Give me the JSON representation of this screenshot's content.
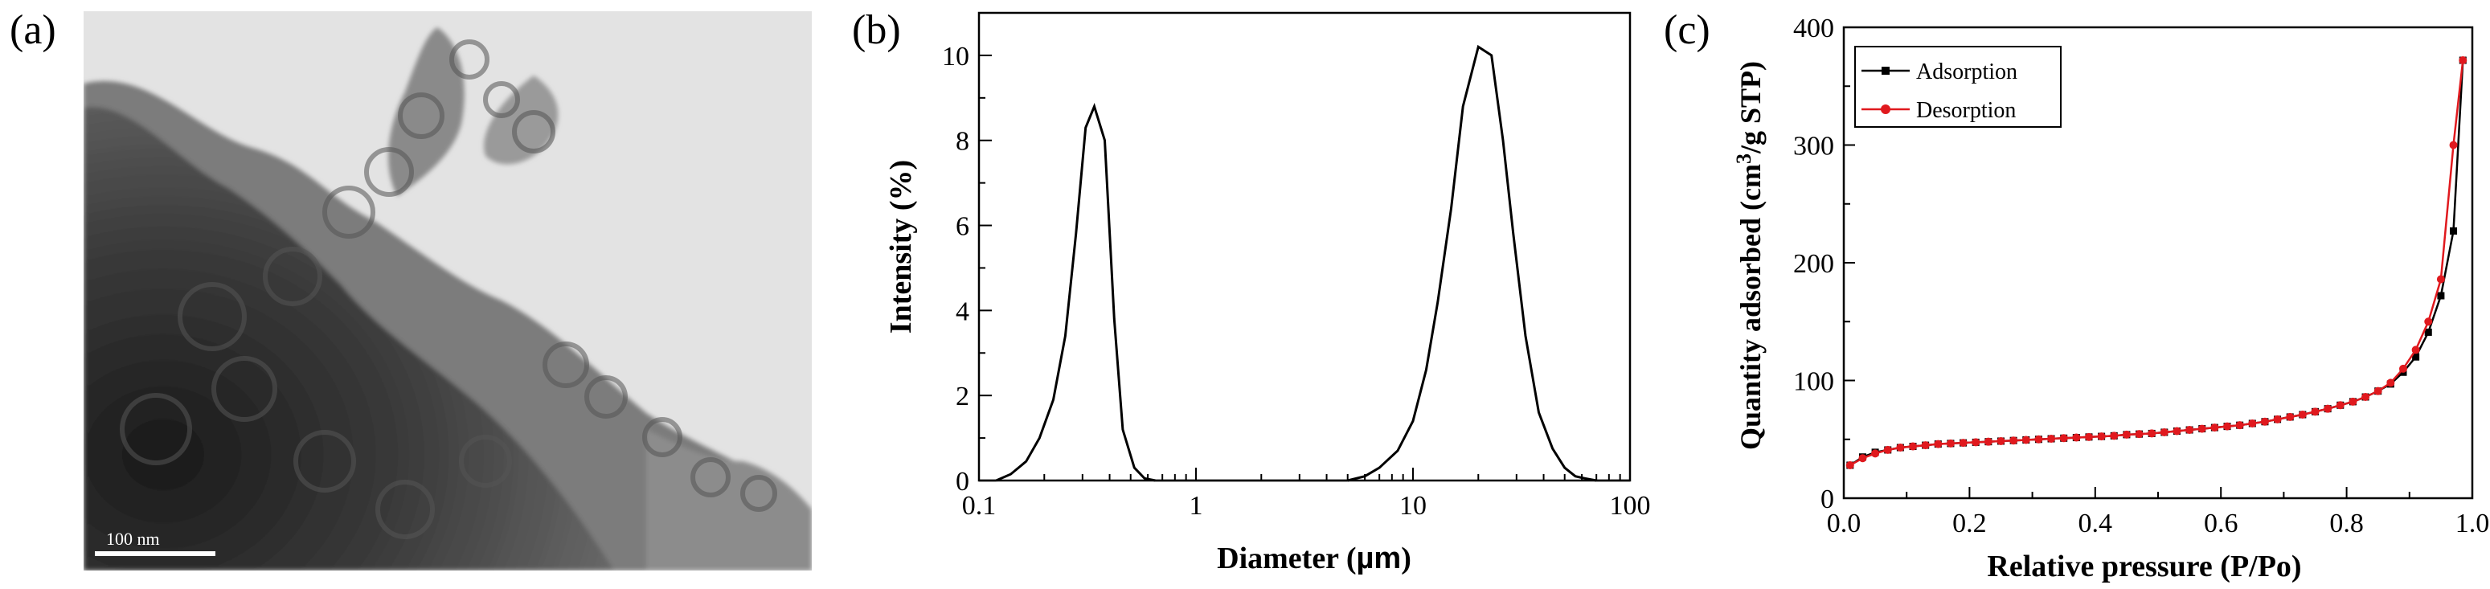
{
  "panels": {
    "a": {
      "label": "(a)",
      "scale_bar": "100 nm"
    },
    "b": {
      "label": "(b)"
    },
    "c": {
      "label": "(c)"
    }
  },
  "colors": {
    "adsorption": "#000000",
    "desorption": "#e0191e"
  },
  "chart_data": [
    {
      "panel": "b",
      "type": "line",
      "xlabel_main": "Diameter (",
      "xlabel_unit": "µm",
      "xlabel_close": ")",
      "ylabel": "Intensity (%)",
      "xscale": "log",
      "xlim": [
        0.1,
        100
      ],
      "ylim": [
        0,
        11
      ],
      "xticks": [
        {
          "v": 0.1,
          "label": "0.1"
        },
        {
          "v": 1,
          "label": "1"
        },
        {
          "v": 10,
          "label": "10"
        },
        {
          "v": 100,
          "label": "100"
        }
      ],
      "yticks": [
        {
          "v": 0,
          "label": "0"
        },
        {
          "v": 2,
          "label": "2"
        },
        {
          "v": 4,
          "label": "4"
        },
        {
          "v": 6,
          "label": "6"
        },
        {
          "v": 8,
          "label": "8"
        },
        {
          "v": 10,
          "label": "10"
        }
      ],
      "series": [
        {
          "x": [
            0.12,
            0.14,
            0.165,
            0.19,
            0.22,
            0.25,
            0.28,
            0.31,
            0.34,
            0.38,
            0.42,
            0.46,
            0.52,
            0.58,
            0.65
          ],
          "y": [
            0,
            0.15,
            0.45,
            1.0,
            1.9,
            3.4,
            5.8,
            8.3,
            8.8,
            8.0,
            3.8,
            1.2,
            0.3,
            0.05,
            0
          ]
        },
        {
          "x": [
            5.0,
            6.0,
            7.0,
            8.5,
            10,
            11.5,
            13,
            15,
            17,
            20,
            23,
            26,
            29,
            33,
            38,
            44,
            50,
            56,
            62,
            70
          ],
          "y": [
            0,
            0.1,
            0.3,
            0.7,
            1.4,
            2.6,
            4.2,
            6.4,
            8.8,
            10.2,
            10.0,
            8.0,
            5.8,
            3.4,
            1.6,
            0.75,
            0.3,
            0.1,
            0.05,
            0
          ]
        }
      ]
    },
    {
      "panel": "c",
      "type": "line",
      "xlabel": "Relative pressure (P/Po)",
      "ylabel_main": "Quantity adsorbed (cm",
      "ylabel_sup": "3",
      "ylabel_rest": "/g STP)",
      "xlim": [
        0,
        1.0
      ],
      "ylim": [
        0,
        400
      ],
      "xticks": [
        {
          "v": 0.0,
          "label": "0.0"
        },
        {
          "v": 0.2,
          "label": "0.2"
        },
        {
          "v": 0.4,
          "label": "0.4"
        },
        {
          "v": 0.6,
          "label": "0.6"
        },
        {
          "v": 0.8,
          "label": "0.8"
        },
        {
          "v": 1.0,
          "label": "1.0"
        }
      ],
      "yticks": [
        {
          "v": 0,
          "label": "0"
        },
        {
          "v": 100,
          "label": "100"
        },
        {
          "v": 200,
          "label": "200"
        },
        {
          "v": 300,
          "label": "300"
        },
        {
          "v": 400,
          "label": "400"
        }
      ],
      "legend_position": "top-left",
      "series": [
        {
          "name": "Adsorption",
          "marker": "square",
          "color_key": "adsorption",
          "x": [
            0.01,
            0.03,
            0.05,
            0.07,
            0.09,
            0.11,
            0.13,
            0.15,
            0.17,
            0.19,
            0.21,
            0.23,
            0.25,
            0.27,
            0.29,
            0.31,
            0.33,
            0.35,
            0.37,
            0.39,
            0.41,
            0.43,
            0.45,
            0.47,
            0.49,
            0.51,
            0.53,
            0.55,
            0.57,
            0.59,
            0.61,
            0.63,
            0.65,
            0.67,
            0.69,
            0.71,
            0.73,
            0.75,
            0.77,
            0.79,
            0.81,
            0.83,
            0.85,
            0.87,
            0.89,
            0.91,
            0.93,
            0.95,
            0.97,
            0.985
          ],
          "y": [
            28,
            35,
            39,
            41,
            43,
            44,
            45,
            46,
            46.5,
            47,
            47.5,
            48,
            48.5,
            49,
            49.5,
            50,
            50.5,
            51,
            51.5,
            52,
            52.5,
            53,
            54,
            54.5,
            55,
            56,
            57,
            58,
            59,
            60,
            61,
            62,
            63.5,
            65,
            67,
            69,
            71,
            73.5,
            76,
            79,
            82,
            86,
            91,
            97,
            107,
            120,
            141,
            172,
            227,
            372
          ]
        },
        {
          "name": "Desorption",
          "marker": "circle",
          "color_key": "desorption",
          "x": [
            0.01,
            0.03,
            0.05,
            0.07,
            0.09,
            0.11,
            0.13,
            0.15,
            0.17,
            0.19,
            0.21,
            0.23,
            0.25,
            0.27,
            0.29,
            0.31,
            0.33,
            0.35,
            0.37,
            0.39,
            0.41,
            0.43,
            0.45,
            0.47,
            0.49,
            0.51,
            0.53,
            0.55,
            0.57,
            0.59,
            0.61,
            0.63,
            0.65,
            0.67,
            0.69,
            0.71,
            0.73,
            0.75,
            0.77,
            0.79,
            0.81,
            0.83,
            0.85,
            0.87,
            0.89,
            0.91,
            0.93,
            0.95,
            0.97,
            0.985
          ],
          "y": [
            28,
            34,
            38,
            41,
            43,
            44,
            45,
            46,
            46.5,
            47,
            47.5,
            48,
            48.5,
            49,
            49.5,
            50,
            50.5,
            51,
            51.5,
            52,
            52.5,
            53,
            54,
            54.5,
            55,
            56,
            57,
            58,
            59,
            60,
            61,
            62,
            63.5,
            65,
            67,
            69,
            71,
            73.5,
            76,
            79,
            82,
            86,
            91,
            98,
            110,
            126,
            150,
            186,
            300,
            372
          ]
        }
      ]
    }
  ]
}
